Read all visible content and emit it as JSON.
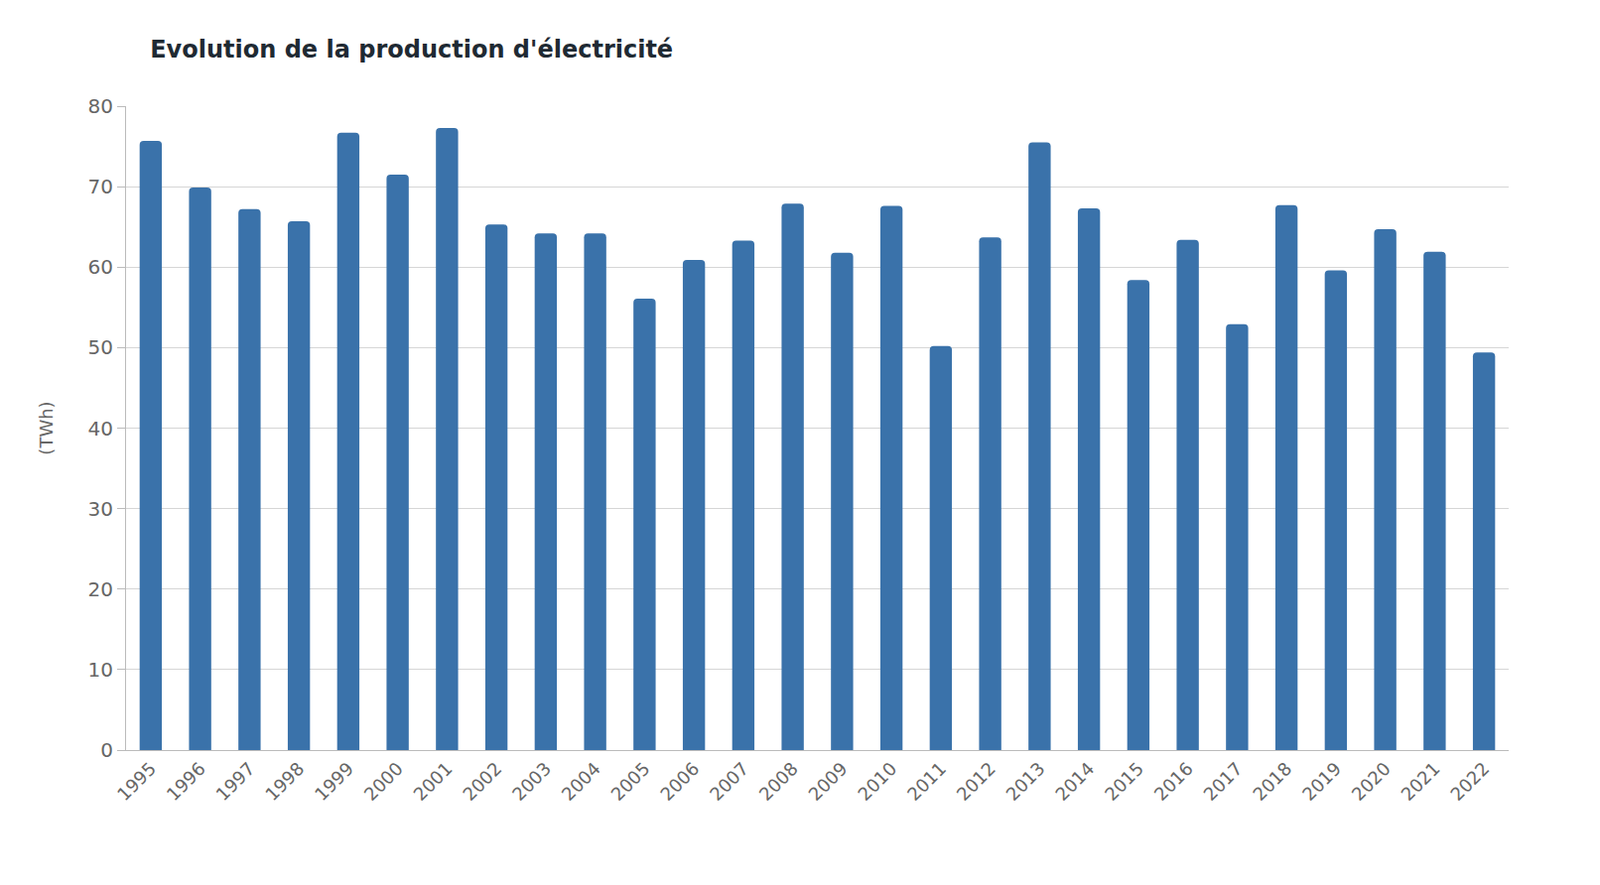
{
  "chart_data": {
    "type": "bar",
    "title": "Evolution de la production d'électricité",
    "y_label": "(TWh)",
    "categories": [
      "1995",
      "1996",
      "1997",
      "1998",
      "1999",
      "2000",
      "2001",
      "2002",
      "2003",
      "2004",
      "2005",
      "2006",
      "2007",
      "2008",
      "2009",
      "2010",
      "2011",
      "2012",
      "2013",
      "2014",
      "2015",
      "2016",
      "2017",
      "2018",
      "2019",
      "2020",
      "2021",
      "2022"
    ],
    "values": [
      75.7,
      69.9,
      67.2,
      65.7,
      76.7,
      71.5,
      77.3,
      65.3,
      64.2,
      64.2,
      56.1,
      60.9,
      63.3,
      67.9,
      61.8,
      67.6,
      50.2,
      63.7,
      75.5,
      67.3,
      58.4,
      63.4,
      52.9,
      67.7,
      59.6,
      64.7,
      61.9,
      49.4
    ],
    "color": "#3a72aa",
    "ylim": [
      0,
      80
    ],
    "yticks": [
      0,
      10,
      20,
      30,
      40,
      50,
      60,
      70,
      80
    ],
    "grid": true
  }
}
